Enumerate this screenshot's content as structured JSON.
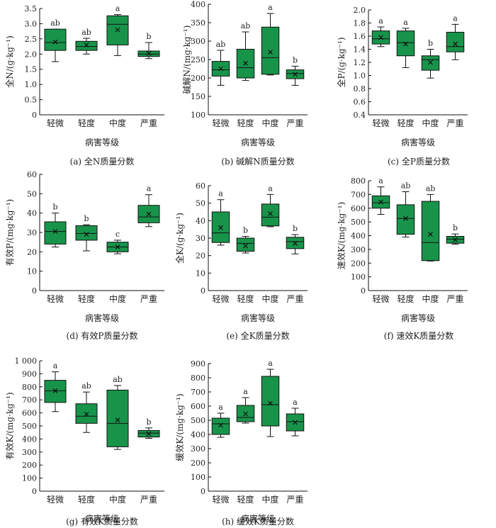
{
  "colors": {
    "box_fill": "#18944a",
    "stroke": "#111111"
  },
  "x_title": "病害等级",
  "categories": [
    "轻微",
    "轻度",
    "中度",
    "严重"
  ],
  "chart_data": [
    {
      "type": "boxplot",
      "caption": "(a)  全N质量分数",
      "ylabel": "全N/(g·kg⁻¹)",
      "ylim": [
        0,
        3.5
      ],
      "yticks": [
        "0",
        "0.5",
        "1.0",
        "1.5",
        "2.0",
        "2.5",
        "3.0",
        "3.5"
      ],
      "tick_values": [
        0,
        0.5,
        1.0,
        1.5,
        2.0,
        2.5,
        3.0,
        3.5
      ],
      "boxes": [
        {
          "min": 1.75,
          "q1": 2.12,
          "median": 2.38,
          "q3": 2.82,
          "max": 2.82,
          "mean": 2.4,
          "sig": "ab"
        },
        {
          "min": 2.0,
          "q1": 2.12,
          "median": 2.25,
          "q3": 2.42,
          "max": 2.52,
          "mean": 2.3,
          "sig": "ab"
        },
        {
          "min": 1.95,
          "q1": 2.3,
          "median": 2.98,
          "q3": 3.26,
          "max": 3.3,
          "mean": 2.8,
          "sig": "a"
        },
        {
          "min": 1.85,
          "q1": 1.92,
          "median": 2.0,
          "q3": 2.1,
          "max": 2.38,
          "mean": 2.02,
          "sig": "b"
        }
      ]
    },
    {
      "type": "boxplot",
      "caption": "(b)  碱解N质量分数",
      "ylabel": "碱解N/(mg·kg⁻¹)",
      "ylim": [
        100,
        400
      ],
      "yticks": [
        "100",
        "150",
        "200",
        "250",
        "300",
        "350",
        "400"
      ],
      "tick_values": [
        100,
        150,
        200,
        250,
        300,
        350,
        400
      ],
      "boxes": [
        {
          "min": 180,
          "q1": 205,
          "median": 222,
          "q3": 245,
          "max": 275,
          "mean": 225,
          "sig": "ab"
        },
        {
          "min": 193,
          "q1": 200,
          "median": 228,
          "q3": 278,
          "max": 325,
          "mean": 240,
          "sig": "ab"
        },
        {
          "min": 208,
          "q1": 210,
          "median": 255,
          "q3": 338,
          "max": 375,
          "mean": 270,
          "sig": "a"
        },
        {
          "min": 180,
          "q1": 198,
          "median": 212,
          "q3": 222,
          "max": 232,
          "mean": 210,
          "sig": "b"
        }
      ]
    },
    {
      "type": "boxplot",
      "caption": "(c)  全P质量分数",
      "ylabel": "全P/(g·kg⁻¹)",
      "ylim": [
        0.4,
        2.0
      ],
      "yticks": [
        "0.4",
        "0.6",
        "0.8",
        "1.0",
        "1.2",
        "1.4",
        "1.6",
        "1.8",
        "2.0"
      ],
      "tick_values": [
        0.4,
        0.6,
        0.8,
        1.0,
        1.2,
        1.4,
        1.6,
        1.8,
        2.0
      ],
      "boxes": [
        {
          "min": 1.44,
          "q1": 1.48,
          "median": 1.56,
          "q3": 1.68,
          "max": 1.74,
          "mean": 1.58,
          "sig": "a"
        },
        {
          "min": 1.12,
          "q1": 1.3,
          "median": 1.5,
          "q3": 1.68,
          "max": 1.72,
          "mean": 1.48,
          "sig": "a"
        },
        {
          "min": 0.96,
          "q1": 1.08,
          "median": 1.24,
          "q3": 1.3,
          "max": 1.4,
          "mean": 1.2,
          "sig": "b"
        },
        {
          "min": 1.24,
          "q1": 1.36,
          "median": 1.44,
          "q3": 1.66,
          "max": 1.78,
          "mean": 1.48,
          "sig": "a"
        }
      ]
    },
    {
      "type": "boxplot",
      "caption": "(d)  有效P质量分数",
      "ylabel": "有效P/(mg·kg⁻¹)",
      "ylim": [
        0,
        60
      ],
      "yticks": [
        "0",
        "10",
        "20",
        "30",
        "40",
        "50",
        "60"
      ],
      "tick_values": [
        0,
        10,
        20,
        30,
        40,
        50,
        60
      ],
      "boxes": [
        {
          "min": 22.5,
          "q1": 24.0,
          "median": 30.5,
          "q3": 35.5,
          "max": 40.0,
          "mean": 30.5,
          "sig": "b"
        },
        {
          "min": 20.5,
          "q1": 26.0,
          "median": 29.5,
          "q3": 33.5,
          "max": 34.0,
          "mean": 29.0,
          "sig": "b"
        },
        {
          "min": 19.0,
          "q1": 20.0,
          "median": 22.5,
          "q3": 25.0,
          "max": 26.0,
          "mean": 22.5,
          "sig": "c"
        },
        {
          "min": 33.0,
          "q1": 35.0,
          "median": 38.0,
          "q3": 44.0,
          "max": 49.5,
          "mean": 39.5,
          "sig": "a"
        }
      ]
    },
    {
      "type": "boxplot",
      "caption": "(e)  全K质量分数",
      "ylabel": "全K/(g·kg⁻¹)",
      "ylim": [
        0,
        60
      ],
      "yticks": [
        "0",
        "10",
        "20",
        "30",
        "40",
        "50",
        "60"
      ],
      "tick_values": [
        0,
        10,
        20,
        30,
        40,
        50,
        60
      ],
      "boxes": [
        {
          "min": 26.0,
          "q1": 27.5,
          "median": 33.0,
          "q3": 45.0,
          "max": 52.0,
          "mean": 36.0,
          "sig": "a"
        },
        {
          "min": 21.5,
          "q1": 22.5,
          "median": 27.0,
          "q3": 30.0,
          "max": 31.0,
          "mean": 25.5,
          "sig": "b"
        },
        {
          "min": 36.5,
          "q1": 37.0,
          "median": 42.0,
          "q3": 49.5,
          "max": 55.0,
          "mean": 44.0,
          "sig": "a"
        },
        {
          "min": 21.0,
          "q1": 24.0,
          "median": 28.0,
          "q3": 30.5,
          "max": 32.0,
          "mean": 27.0,
          "sig": "b"
        }
      ]
    },
    {
      "type": "boxplot",
      "caption": "(f)  速效K质量分数",
      "ylabel": "速效K/(mg·kg⁻¹)",
      "ylim": [
        0,
        800
      ],
      "yticks": [
        "0",
        "100",
        "200",
        "300",
        "400",
        "500",
        "600",
        "700",
        "800"
      ],
      "tick_values": [
        0,
        100,
        200,
        300,
        400,
        500,
        600,
        700,
        800
      ],
      "boxes": [
        {
          "min": 555,
          "q1": 600,
          "median": 640,
          "q3": 690,
          "max": 755,
          "mean": 645,
          "sig": "a"
        },
        {
          "min": 390,
          "q1": 410,
          "median": 525,
          "q3": 625,
          "max": 720,
          "mean": 525,
          "sig": "ab"
        },
        {
          "min": 215,
          "q1": 218,
          "median": 350,
          "q3": 650,
          "max": 700,
          "mean": 410,
          "sig": "ab"
        },
        {
          "min": 338,
          "q1": 345,
          "median": 375,
          "q3": 395,
          "max": 412,
          "mean": 370,
          "sig": "b"
        }
      ]
    },
    {
      "type": "boxplot",
      "caption": "(g)  有效K质量分数",
      "ylabel": "有效K/(mg·kg⁻¹)",
      "ylim": [
        0,
        1000
      ],
      "yticks": [
        "0",
        "100",
        "200",
        "300",
        "400",
        "500",
        "600",
        "700",
        "800",
        "900",
        "1 000"
      ],
      "tick_values": [
        0,
        100,
        200,
        300,
        400,
        500,
        600,
        700,
        800,
        900,
        1000
      ],
      "boxes": [
        {
          "min": 610,
          "q1": 680,
          "median": 770,
          "q3": 850,
          "max": 915,
          "mean": 770,
          "sig": "a"
        },
        {
          "min": 450,
          "q1": 520,
          "median": 575,
          "q3": 670,
          "max": 760,
          "mean": 590,
          "sig": "ab"
        },
        {
          "min": 320,
          "q1": 340,
          "median": 520,
          "q3": 775,
          "max": 810,
          "mean": 545,
          "sig": "ab"
        },
        {
          "min": 405,
          "q1": 415,
          "median": 445,
          "q3": 465,
          "max": 485,
          "mean": 440,
          "sig": "b"
        }
      ]
    },
    {
      "type": "boxplot",
      "caption": "(h)  缓效K质量分数",
      "ylabel": "缓效K/(mg·kg⁻¹)",
      "ylim": [
        0,
        900
      ],
      "yticks": [
        "0",
        "100",
        "200",
        "300",
        "400",
        "500",
        "600",
        "700",
        "800",
        "900"
      ],
      "tick_values": [
        0,
        100,
        200,
        300,
        400,
        500,
        600,
        700,
        800,
        900
      ],
      "boxes": [
        {
          "min": 380,
          "q1": 400,
          "median": 475,
          "q3": 515,
          "max": 550,
          "mean": 465,
          "sig": "a"
        },
        {
          "min": 480,
          "q1": 490,
          "median": 520,
          "q3": 605,
          "max": 660,
          "mean": 545,
          "sig": "a"
        },
        {
          "min": 385,
          "q1": 460,
          "median": 610,
          "q3": 810,
          "max": 860,
          "mean": 620,
          "sig": "a"
        },
        {
          "min": 390,
          "q1": 425,
          "median": 490,
          "q3": 545,
          "max": 585,
          "mean": 485,
          "sig": "a"
        }
      ]
    }
  ]
}
